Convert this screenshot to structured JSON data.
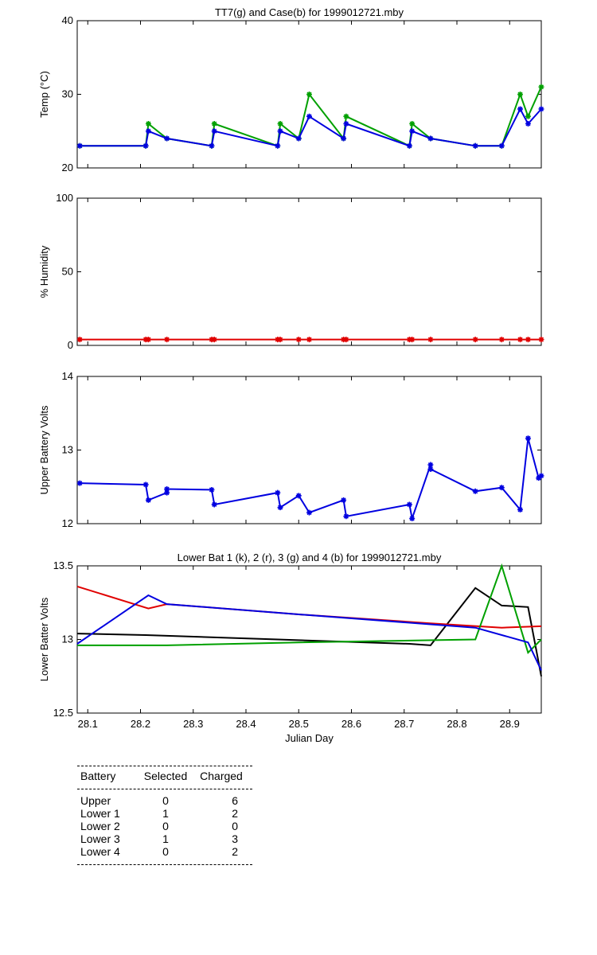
{
  "chart_data": [
    {
      "type": "line",
      "title": "TT7(g) and Case(b) for 1999012721.mby",
      "ylabel": "Temp  (°C)",
      "xlim": [
        28.08,
        28.96
      ],
      "ylim": [
        20,
        40
      ],
      "yticks": [
        20,
        30,
        40
      ],
      "grid": false,
      "series": [
        {
          "name": "TT7",
          "color": "#00a000",
          "marker": "*",
          "x": [
            28.085,
            28.21,
            28.215,
            28.25,
            28.335,
            28.34,
            28.46,
            28.465,
            28.5,
            28.52,
            28.585,
            28.59,
            28.71,
            28.715,
            28.75,
            28.835,
            28.885,
            28.92,
            28.935,
            28.96
          ],
          "y": [
            23,
            23,
            26,
            24,
            23,
            26,
            23,
            26,
            24,
            30,
            24,
            27,
            23,
            26,
            24,
            23,
            23,
            30,
            27,
            31
          ]
        },
        {
          "name": "Case",
          "color": "#0000e0",
          "marker": "*",
          "x": [
            28.085,
            28.21,
            28.215,
            28.25,
            28.335,
            28.34,
            28.46,
            28.465,
            28.5,
            28.52,
            28.585,
            28.59,
            28.71,
            28.715,
            28.75,
            28.835,
            28.885,
            28.92,
            28.935,
            28.96
          ],
          "y": [
            23,
            23,
            25,
            24,
            23,
            25,
            23,
            25,
            24,
            27,
            24,
            26,
            23,
            25,
            24,
            23,
            23,
            28,
            26,
            28
          ]
        }
      ]
    },
    {
      "type": "line",
      "title": "",
      "ylabel": "% Humidity",
      "xlim": [
        28.08,
        28.96
      ],
      "ylim": [
        0,
        100
      ],
      "yticks": [
        0,
        50,
        100
      ],
      "grid": false,
      "series": [
        {
          "name": "Humidity",
          "color": "#e00000",
          "marker": "*",
          "x": [
            28.085,
            28.21,
            28.215,
            28.25,
            28.335,
            28.34,
            28.46,
            28.465,
            28.5,
            28.52,
            28.585,
            28.59,
            28.71,
            28.715,
            28.75,
            28.835,
            28.885,
            28.92,
            28.935,
            28.96
          ],
          "y": [
            4,
            4,
            4,
            4,
            4,
            4,
            4,
            4,
            4,
            4,
            4,
            4,
            4,
            4,
            4,
            4,
            4,
            4,
            4,
            4
          ]
        }
      ]
    },
    {
      "type": "line",
      "title": "",
      "ylabel": "Upper Battery Volts",
      "xlim": [
        28.08,
        28.96
      ],
      "ylim": [
        12,
        14
      ],
      "yticks": [
        12,
        13,
        14
      ],
      "grid": false,
      "series": [
        {
          "name": "Upper",
          "color": "#0000e0",
          "marker": "*",
          "x": [
            28.085,
            28.21,
            28.215,
            28.25,
            28.25,
            28.335,
            28.34,
            28.46,
            28.465,
            28.5,
            28.52,
            28.585,
            28.59,
            28.71,
            28.715,
            28.75,
            28.75,
            28.835,
            28.885,
            28.92,
            28.935,
            28.955,
            28.96
          ],
          "y": [
            12.55,
            12.53,
            12.32,
            12.42,
            12.47,
            12.46,
            12.26,
            12.42,
            12.22,
            12.38,
            12.15,
            12.32,
            12.1,
            12.26,
            12.07,
            12.8,
            12.74,
            12.44,
            12.49,
            12.19,
            13.16,
            12.62,
            12.65
          ]
        }
      ]
    },
    {
      "type": "line",
      "title": "Lower Bat 1 (k), 2 (r), 3 (g) and 4 (b) for 1999012721.mby",
      "xlabel": "Julian Day",
      "ylabel": "Lower Batter Volts",
      "xlim": [
        28.08,
        28.96
      ],
      "ylim": [
        12.5,
        13.5
      ],
      "yticks": [
        12.5,
        13,
        13.5
      ],
      "xticks": [
        28.1,
        28.2,
        28.3,
        28.4,
        28.5,
        28.6,
        28.7,
        28.8,
        28.9
      ],
      "xticklabels": [
        "28.1",
        "28.2",
        "28.3",
        "28.4",
        "28.5",
        "28.6",
        "28.7",
        "28.8",
        "28.9"
      ],
      "grid": false,
      "series": [
        {
          "name": "Lower 1",
          "color": "#000000",
          "x": [
            28.08,
            28.21,
            28.46,
            28.71,
            28.75,
            28.835,
            28.885,
            28.935,
            28.96
          ],
          "y": [
            13.04,
            13.03,
            13.0,
            12.97,
            12.96,
            13.35,
            13.23,
            13.22,
            12.75
          ]
        },
        {
          "name": "Lower 2",
          "color": "#e00000",
          "x": [
            28.08,
            28.215,
            28.25,
            28.5,
            28.75,
            28.885,
            28.96
          ],
          "y": [
            13.36,
            13.21,
            13.24,
            13.17,
            13.11,
            13.08,
            13.09
          ]
        },
        {
          "name": "Lower 3",
          "color": "#00a000",
          "x": [
            28.08,
            28.25,
            28.5,
            28.835,
            28.885,
            28.935,
            28.96
          ],
          "y": [
            12.96,
            12.96,
            12.98,
            13.0,
            13.5,
            12.91,
            13.0
          ]
        },
        {
          "name": "Lower 4",
          "color": "#0000e0",
          "x": [
            28.08,
            28.215,
            28.25,
            28.5,
            28.835,
            28.935,
            28.96
          ],
          "y": [
            12.97,
            13.3,
            13.24,
            13.17,
            13.08,
            12.98,
            12.79
          ]
        }
      ]
    }
  ],
  "table": {
    "headers": [
      "Battery",
      "Selected",
      "Charged"
    ],
    "rows": [
      [
        "Upper",
        "0",
        "6"
      ],
      [
        "Lower 1",
        "1",
        "2"
      ],
      [
        "Lower 2",
        "0",
        "0"
      ],
      [
        "Lower 3",
        "1",
        "3"
      ],
      [
        "Lower 4",
        "0",
        "2"
      ]
    ]
  }
}
